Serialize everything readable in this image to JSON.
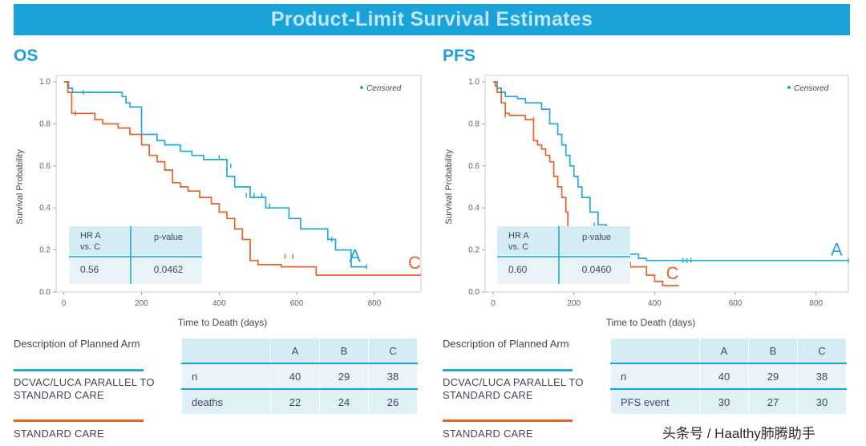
{
  "banner_title": "Product-Limit Survival Estimates",
  "colors": {
    "arm_a": "#21a9d7",
    "arm_c": "#e8612b",
    "banner": "#1aa3d9",
    "panel_title": "#1aa0d8"
  },
  "chart_data": [
    {
      "type": "line",
      "panel_title": "OS",
      "xlabel": "Time to Death (days)",
      "ylabel": "Survival Probability",
      "xlim": [
        -20,
        920
      ],
      "ylim": [
        0,
        1.0
      ],
      "xticks": [
        0,
        200,
        400,
        600,
        800
      ],
      "yticks": [
        0.0,
        0.2,
        0.4,
        0.6,
        0.8,
        1.0
      ],
      "ytick_labels": [
        "0.0",
        "0.2",
        "0.4",
        "0.6",
        "0.8",
        "1.0"
      ],
      "legend": "Censored",
      "legend_position": "top-right",
      "series": [
        {
          "name": "A",
          "label": "A",
          "color": "#21a9d7",
          "x": [
            0,
            10,
            12,
            20,
            22,
            50,
            150,
            160,
            170,
            200,
            240,
            260,
            300,
            330,
            360,
            420,
            440,
            480,
            520,
            580,
            610,
            650,
            680,
            700,
            740,
            780
          ],
          "y": [
            1.0,
            1.0,
            0.97,
            0.97,
            0.95,
            0.95,
            0.93,
            0.9,
            0.88,
            0.75,
            0.72,
            0.7,
            0.67,
            0.65,
            0.63,
            0.55,
            0.5,
            0.45,
            0.4,
            0.35,
            0.3,
            0.3,
            0.25,
            0.2,
            0.12,
            0.12
          ],
          "censored_x": [
            10,
            50,
            400,
            430,
            470,
            490,
            510,
            530,
            690,
            780
          ],
          "censored_y": [
            0.98,
            0.95,
            0.64,
            0.6,
            0.46,
            0.46,
            0.46,
            0.41,
            0.25,
            0.12
          ]
        },
        {
          "name": "C",
          "label": "C",
          "color": "#e8612b",
          "x": [
            0,
            5,
            10,
            20,
            50,
            80,
            100,
            140,
            170,
            200,
            220,
            240,
            260,
            280,
            300,
            320,
            350,
            380,
            400,
            420,
            440,
            460,
            480,
            500,
            540,
            560,
            600,
            630,
            650,
            700,
            800,
            920
          ],
          "y": [
            1.0,
            1.0,
            0.95,
            0.85,
            0.85,
            0.82,
            0.8,
            0.78,
            0.75,
            0.7,
            0.65,
            0.62,
            0.58,
            0.52,
            0.5,
            0.48,
            0.45,
            0.42,
            0.38,
            0.35,
            0.3,
            0.25,
            0.15,
            0.13,
            0.13,
            0.12,
            0.12,
            0.12,
            0.08,
            0.08,
            0.08,
            0.08
          ],
          "censored_x": [
            30,
            570,
            590
          ],
          "censored_y": [
            0.85,
            0.17,
            0.17
          ]
        }
      ]
    },
    {
      "type": "line",
      "panel_title": "PFS",
      "xlabel": "Time to Death (days)",
      "ylabel": "Survival Probability",
      "xlim": [
        -20,
        880
      ],
      "ylim": [
        0,
        1.0
      ],
      "xticks": [
        0,
        200,
        400,
        600,
        800
      ],
      "yticks": [
        0.0,
        0.2,
        0.4,
        0.6,
        0.8,
        1.0
      ],
      "ytick_labels": [
        "0.0",
        "0.2",
        "0.4",
        "0.6",
        "0.8",
        "1.0"
      ],
      "legend": "Censored",
      "legend_position": "top-right",
      "series": [
        {
          "name": "A",
          "label": "A",
          "color": "#21a9d7",
          "x": [
            0,
            10,
            20,
            30,
            60,
            80,
            120,
            140,
            160,
            170,
            180,
            190,
            200,
            210,
            220,
            240,
            260,
            280,
            300,
            330,
            360,
            380,
            400,
            480,
            600,
            800,
            880
          ],
          "y": [
            1.0,
            0.97,
            0.95,
            0.93,
            0.92,
            0.9,
            0.87,
            0.8,
            0.75,
            0.7,
            0.65,
            0.6,
            0.55,
            0.5,
            0.45,
            0.38,
            0.32,
            0.25,
            0.2,
            0.18,
            0.16,
            0.15,
            0.15,
            0.15,
            0.15,
            0.15,
            0.15
          ],
          "censored_x": [
            10,
            250,
            470,
            480,
            490,
            880
          ],
          "censored_y": [
            0.98,
            0.32,
            0.15,
            0.15,
            0.15,
            0.15
          ]
        },
        {
          "name": "C",
          "label": "C",
          "color": "#e8612b",
          "x": [
            0,
            5,
            10,
            20,
            30,
            40,
            80,
            100,
            110,
            120,
            130,
            140,
            150,
            160,
            170,
            180,
            185,
            185,
            250,
            280,
            300,
            340,
            380,
            400,
            420,
            460
          ],
          "y": [
            1.0,
            0.98,
            0.95,
            0.9,
            0.85,
            0.84,
            0.82,
            0.72,
            0.7,
            0.68,
            0.65,
            0.62,
            0.55,
            0.5,
            0.45,
            0.38,
            0.32,
            0.27,
            0.18,
            0.16,
            0.14,
            0.12,
            0.08,
            0.05,
            0.03,
            0.03
          ],
          "censored_x": [
            30,
            100
          ],
          "censored_y": [
            0.84,
            0.82
          ]
        }
      ]
    }
  ],
  "os_hr_box": {
    "col1_header": "HR A vs. C",
    "col2_header": "p-value",
    "hr": "0.56",
    "p": "0.0462"
  },
  "pfs_hr_box": {
    "col1_header": "HR A vs. C",
    "col2_header": "p-value",
    "hr": "0.60",
    "p": "0.0460"
  },
  "description_heading": "Description of Planned Arm",
  "arm_a_label": "DCVAC/LUCA PARALLEL TO STANDARD CARE",
  "arm_c_label": "STANDARD CARE",
  "os_table": {
    "headers": [
      "",
      "A",
      "B",
      "C"
    ],
    "rows": [
      [
        "n",
        "40",
        "29",
        "38"
      ],
      [
        "deaths",
        "22",
        "24",
        "26"
      ]
    ]
  },
  "pfs_table": {
    "headers": [
      "",
      "A",
      "B",
      "C"
    ],
    "rows": [
      [
        "n",
        "40",
        "29",
        "38"
      ],
      [
        "PFS event",
        "30",
        "27",
        "30"
      ]
    ]
  },
  "watermark": "头条号 / Haalthy肺腾助手"
}
